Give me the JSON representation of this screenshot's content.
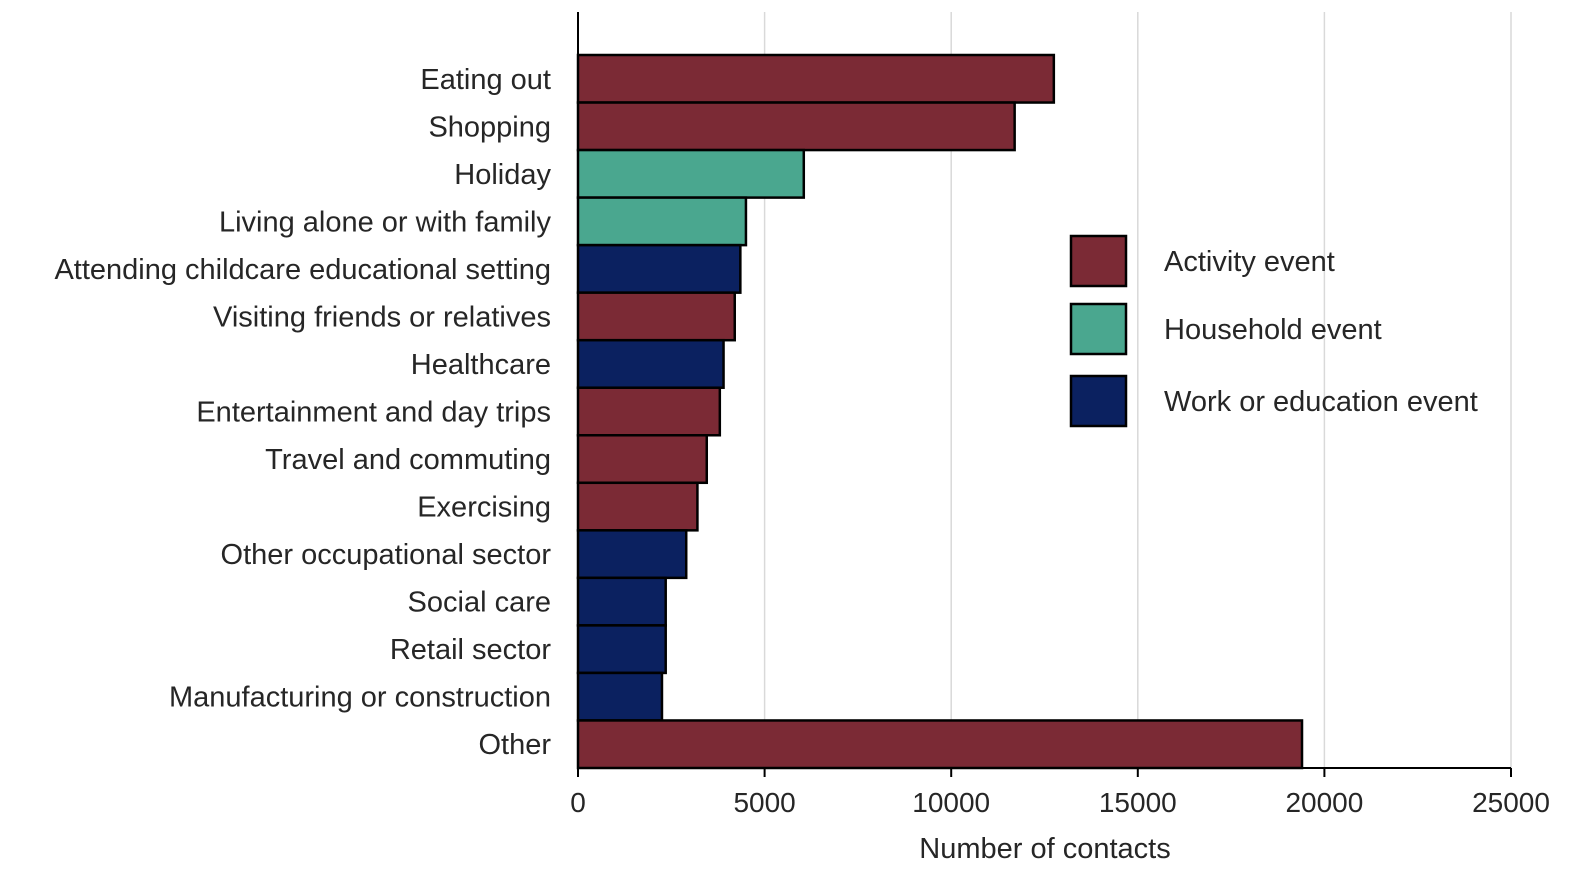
{
  "chart_data": {
    "type": "bar",
    "orientation": "horizontal",
    "title": "",
    "xlabel": "Number of contacts",
    "ylabel": "",
    "xlim": [
      0,
      25000
    ],
    "xticks": [
      0,
      5000,
      10000,
      15000,
      20000,
      25000
    ],
    "xtick_labels": [
      "0",
      "5000",
      "10000",
      "15000",
      "20000",
      "25000"
    ],
    "grid": "vertical",
    "legend_position": "right",
    "legend": [
      {
        "key": "activity",
        "label": "Activity event",
        "color": "#7b2a35"
      },
      {
        "key": "household",
        "label": "Household event",
        "color": "#4aa78f"
      },
      {
        "key": "work",
        "label": "Work or education event",
        "color": "#0b2160"
      }
    ],
    "bars": [
      {
        "label": "Eating out",
        "value": 12750,
        "group": "activity"
      },
      {
        "label": "Shopping",
        "value": 11700,
        "group": "activity"
      },
      {
        "label": "Holiday",
        "value": 6050,
        "group": "household"
      },
      {
        "label": "Living alone or with family",
        "value": 4500,
        "group": "household"
      },
      {
        "label": "Attending childcare educational setting",
        "value": 4350,
        "group": "work"
      },
      {
        "label": "Visiting friends or relatives",
        "value": 4200,
        "group": "activity"
      },
      {
        "label": "Healthcare",
        "value": 3900,
        "group": "work"
      },
      {
        "label": "Entertainment and day trips",
        "value": 3800,
        "group": "activity"
      },
      {
        "label": "Travel and commuting",
        "value": 3450,
        "group": "activity"
      },
      {
        "label": "Exercising",
        "value": 3200,
        "group": "activity"
      },
      {
        "label": "Other occupational sector",
        "value": 2900,
        "group": "work"
      },
      {
        "label": "Social care",
        "value": 2350,
        "group": "work"
      },
      {
        "label": "Retail sector",
        "value": 2350,
        "group": "work"
      },
      {
        "label": "Manufacturing or construction",
        "value": 2250,
        "group": "work"
      },
      {
        "label": "Other",
        "value": 19400,
        "group": "activity"
      }
    ]
  }
}
